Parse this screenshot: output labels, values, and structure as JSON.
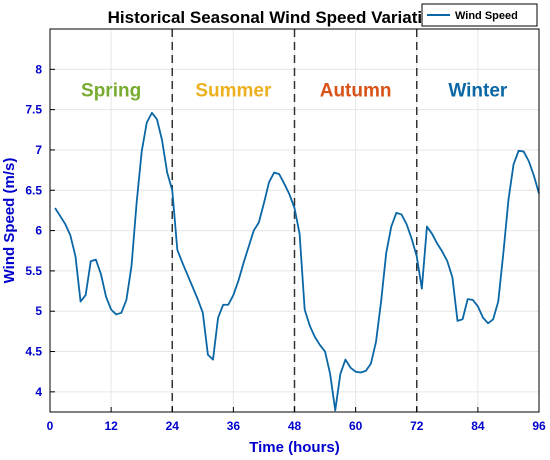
{
  "chart_data": {
    "type": "line",
    "title": "Historical Seasonal Wind Speed Variations",
    "xlabel": "Time (hours)",
    "ylabel": "Wind Speed (m/s)",
    "xlim": [
      0,
      96
    ],
    "ylim": [
      3.75,
      8.5
    ],
    "xticks": [
      0,
      12,
      24,
      36,
      48,
      60,
      72,
      84,
      96
    ],
    "yticks": [
      4,
      4.5,
      5,
      5.5,
      6,
      6.5,
      7,
      7.5,
      8
    ],
    "grid": true,
    "legend_position": "top-right",
    "axis_color": "#0000cc",
    "series": [
      {
        "name": "Wind Speed",
        "color": "#0a67a6",
        "x": [
          1,
          2,
          3,
          4,
          5,
          6,
          7,
          8,
          9,
          10,
          11,
          12,
          13,
          14,
          15,
          16,
          17,
          18,
          19,
          20,
          21,
          22,
          23,
          24,
          25,
          26,
          27,
          28,
          29,
          30,
          31,
          32,
          33,
          34,
          35,
          36,
          37,
          38,
          39,
          40,
          41,
          42,
          43,
          44,
          45,
          46,
          47,
          48,
          49,
          50,
          51,
          52,
          53,
          54,
          55,
          56,
          57,
          58,
          59,
          60,
          61,
          62,
          63,
          64,
          65,
          66,
          67,
          68,
          69,
          70,
          71,
          72,
          73,
          74,
          75,
          76,
          77,
          78,
          79,
          80,
          81,
          82,
          83,
          84,
          85,
          86,
          87,
          88,
          89,
          90,
          91,
          92,
          93,
          94,
          95,
          96
        ],
        "y": [
          6.28,
          6.18,
          6.08,
          5.94,
          5.68,
          5.12,
          5.2,
          5.62,
          5.64,
          5.46,
          5.18,
          5.02,
          4.96,
          4.98,
          5.14,
          5.56,
          6.34,
          6.98,
          7.34,
          7.46,
          7.38,
          7.12,
          6.72,
          6.5,
          5.76,
          5.6,
          5.45,
          5.3,
          5.15,
          4.98,
          4.46,
          4.4,
          4.92,
          5.08,
          5.08,
          5.2,
          5.38,
          5.6,
          5.8,
          6.0,
          6.1,
          6.34,
          6.6,
          6.72,
          6.7,
          6.58,
          6.45,
          6.28,
          5.96,
          5.02,
          4.82,
          4.68,
          4.58,
          4.5,
          4.22,
          3.77,
          4.22,
          4.4,
          4.3,
          4.25,
          4.24,
          4.26,
          4.35,
          4.62,
          5.12,
          5.72,
          6.05,
          6.22,
          6.2,
          6.08,
          5.9,
          5.68,
          5.28,
          6.05,
          5.96,
          5.84,
          5.74,
          5.62,
          5.42,
          4.88,
          4.9,
          5.15,
          5.14,
          5.06,
          4.92,
          4.85,
          4.9,
          5.12,
          5.72,
          6.38,
          6.82,
          6.99,
          6.98,
          6.86,
          6.68,
          6.46
        ]
      }
    ],
    "dividers": [
      24,
      48,
      72
    ],
    "annotations": [
      {
        "text": "Spring",
        "x": 12,
        "y": 7.75,
        "color": "#77ac30"
      },
      {
        "text": "Summer",
        "x": 36,
        "y": 7.75,
        "color": "#edb120"
      },
      {
        "text": "Autumn",
        "x": 60,
        "y": 7.75,
        "color": "#d95319"
      },
      {
        "text": "Winter",
        "x": 84,
        "y": 7.75,
        "color": "#0a67a6"
      }
    ]
  }
}
